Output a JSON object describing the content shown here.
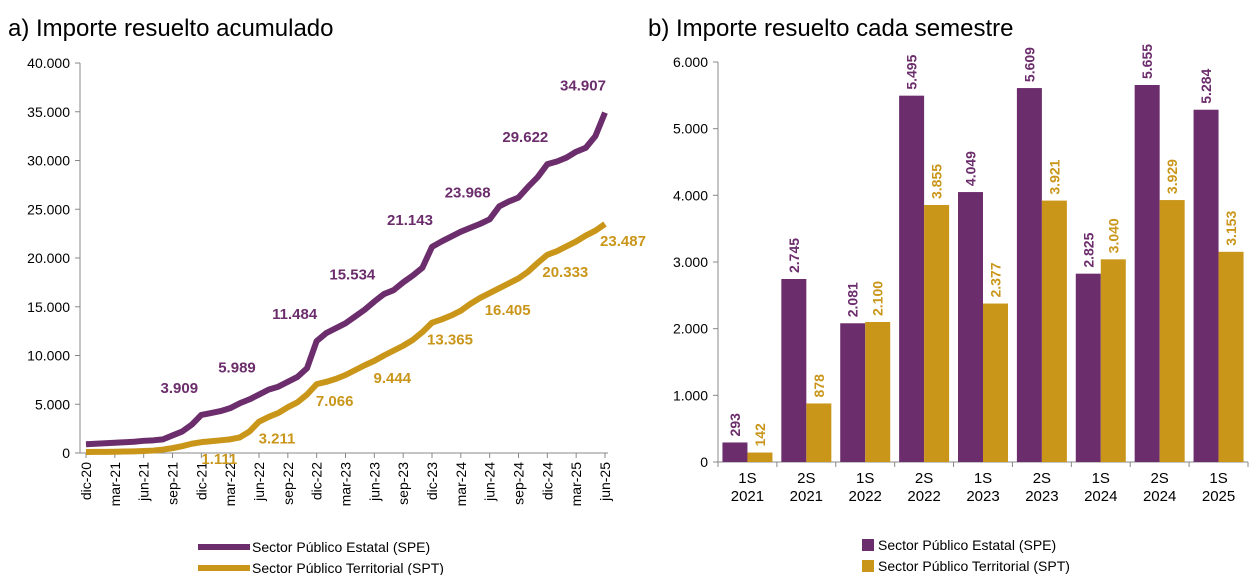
{
  "chart_data": [
    {
      "type": "line",
      "title": "a) Importe resuelto acumulado",
      "categories": [
        "dic-20",
        null,
        null,
        "mar-21",
        null,
        null,
        "jun-21",
        null,
        null,
        "sep-21",
        null,
        null,
        "dic-21",
        null,
        null,
        "mar-22",
        null,
        null,
        "jun-22",
        null,
        null,
        "sep-22",
        null,
        null,
        "dic-22",
        null,
        null,
        "mar-23",
        null,
        null,
        "jun-23",
        null,
        null,
        "sep-23",
        null,
        null,
        "dic-23",
        null,
        null,
        "mar-24",
        null,
        null,
        "jun-24",
        null,
        null,
        "sep-24",
        null,
        null,
        "dic-24",
        null,
        null,
        "mar-25",
        null,
        null,
        "jun-25"
      ],
      "series": [
        {
          "name": "Sector Público Estatal (SPE)",
          "color": "#6b2d6b",
          "values": [
            900,
            950,
            1000,
            1050,
            1100,
            1150,
            1250,
            1300,
            1400,
            1800,
            2200,
            2900,
            3909,
            4100,
            4300,
            4600,
            5100,
            5500,
            5989,
            6500,
            6800,
            7300,
            7800,
            8700,
            11484,
            12300,
            12800,
            13300,
            14000,
            14700,
            15534,
            16300,
            16700,
            17500,
            18200,
            19000,
            21143,
            21700,
            22200,
            22700,
            23100,
            23500,
            23968,
            25300,
            25800,
            26200,
            27300,
            28300,
            29622,
            29900,
            30300,
            30900,
            31300,
            32500,
            34907
          ],
          "value_labels": [
            null,
            null,
            null,
            null,
            null,
            null,
            null,
            null,
            null,
            null,
            null,
            null,
            "3.909",
            null,
            null,
            null,
            null,
            null,
            "5.989",
            null,
            null,
            null,
            null,
            null,
            "11.484",
            null,
            null,
            null,
            null,
            null,
            "15.534",
            null,
            null,
            null,
            null,
            null,
            "21.143",
            null,
            null,
            null,
            null,
            null,
            "23.968",
            null,
            null,
            null,
            null,
            null,
            "29.622",
            null,
            null,
            null,
            null,
            null,
            "34.907"
          ]
        },
        {
          "name": "Sector Público Territorial (SPT)",
          "color": "#c9961a",
          "values": [
            100,
            110,
            120,
            130,
            150,
            170,
            200,
            250,
            350,
            500,
            700,
            950,
            1111,
            1200,
            1300,
            1400,
            1600,
            2200,
            3211,
            3700,
            4100,
            4700,
            5200,
            6000,
            7066,
            7300,
            7600,
            8000,
            8500,
            9000,
            9444,
            10000,
            10500,
            11000,
            11600,
            12400,
            13365,
            13700,
            14100,
            14600,
            15300,
            15900,
            16405,
            16900,
            17400,
            17900,
            18600,
            19500,
            20333,
            20700,
            21200,
            21700,
            22300,
            22800,
            23487
          ],
          "value_labels": [
            null,
            null,
            null,
            null,
            null,
            null,
            null,
            null,
            null,
            null,
            null,
            null,
            "1.111",
            null,
            null,
            null,
            null,
            null,
            "3.211",
            null,
            null,
            null,
            null,
            null,
            "7.066",
            null,
            null,
            null,
            null,
            null,
            "9.444",
            null,
            null,
            null,
            null,
            null,
            "13.365",
            null,
            null,
            null,
            null,
            null,
            "16.405",
            null,
            null,
            null,
            null,
            null,
            "20.333",
            null,
            null,
            null,
            null,
            null,
            "23.487"
          ]
        }
      ],
      "ylim": [
        0,
        40000
      ],
      "yticks": [
        0,
        {
          "value": 5000,
          "label": "5.000"
        },
        {
          "value": 10000,
          "label": "10.000"
        },
        {
          "value": 15000,
          "label": "15.000"
        },
        {
          "value": 20000,
          "label": "20.000"
        },
        {
          "value": 25000,
          "label": "25.000"
        },
        {
          "value": 30000,
          "label": "30.000"
        },
        {
          "value": 35000,
          "label": "35.000"
        },
        {
          "value": 40000,
          "label": "40.000"
        }
      ],
      "legend": "bottom"
    },
    {
      "type": "bar",
      "title": "b) Importe resuelto cada semestre",
      "categories": [
        "1S 2021",
        "2S 2021",
        "1S 2022",
        "2S 2022",
        "1S 2023",
        "2S 2023",
        "1S 2024",
        "2S 2024",
        "1S 2025"
      ],
      "series": [
        {
          "name": "Sector Público Estatal (SPE)",
          "color": "#6b2d6b",
          "values": [
            293,
            2745,
            2081,
            5495,
            4049,
            5609,
            2825,
            5655,
            5284
          ],
          "value_labels": [
            "293",
            "2.745",
            "2.081",
            "5.495",
            "4.049",
            "5.609",
            "2.825",
            "5.655",
            "5.284"
          ]
        },
        {
          "name": "Sector Público Territorial (SPT)",
          "color": "#c9961a",
          "values": [
            142,
            878,
            2100,
            3855,
            2377,
            3921,
            3040,
            3929,
            3153
          ],
          "value_labels": [
            "142",
            "878",
            "2.100",
            "3.855",
            "2.377",
            "3.921",
            "3.040",
            "3.929",
            "3.153"
          ]
        }
      ],
      "ylim": [
        0,
        6000
      ],
      "yticks": [
        0,
        {
          "value": 1000,
          "label": "1.000"
        },
        {
          "value": 2000,
          "label": "2.000"
        },
        {
          "value": 3000,
          "label": "3.000"
        },
        {
          "value": 4000,
          "label": "4.000"
        },
        {
          "value": 5000,
          "label": "5.000"
        },
        {
          "value": 6000,
          "label": "6.000"
        }
      ],
      "legend": "bottom"
    }
  ]
}
